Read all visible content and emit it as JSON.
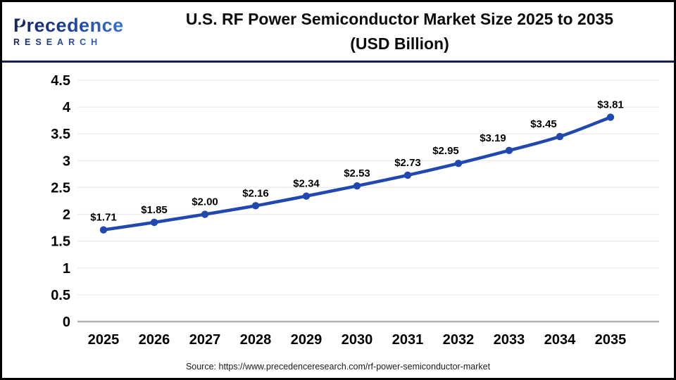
{
  "logo": {
    "name": "Precedence",
    "subtitle": "RESEARCH"
  },
  "header": {
    "title_line1": "U.S. RF Power Semiconductor Market Size 2025 to 2035",
    "title_line2": "(USD Billion)"
  },
  "source": "Source: https://www.precedenceresearch.com/rf-power-semiconductor-market",
  "chart_data": {
    "type": "line",
    "title": "U.S. RF Power Semiconductor Market Size 2025 to 2035 (USD Billion)",
    "categories": [
      "2025",
      "2026",
      "2027",
      "2028",
      "2029",
      "2030",
      "2031",
      "2032",
      "2033",
      "2034",
      "2035"
    ],
    "series": [
      {
        "name": "U.S. RF Power Semiconductor Market Size (USD Billion)",
        "values": [
          1.71,
          1.85,
          2.0,
          2.16,
          2.34,
          2.53,
          2.73,
          2.95,
          3.19,
          3.45,
          3.81
        ],
        "point_labels": [
          "$1.71",
          "$1.85",
          "$2.00",
          "$2.16",
          "$2.34",
          "$2.53",
          "$2.73",
          "$2.95",
          "$3.19",
          "$3.45",
          "$3.81"
        ]
      }
    ],
    "xlabel": "",
    "ylabel": "",
    "ylim": [
      0,
      4.5
    ],
    "yticks": [
      0,
      0.5,
      1,
      1.5,
      2,
      2.5,
      3,
      3.5,
      4,
      4.5
    ],
    "ytick_labels": [
      "0",
      "0.5",
      "1",
      "1.5",
      "2",
      "2.5",
      "3",
      "3.5",
      "4",
      "4.5"
    ],
    "grid": true,
    "legend_position": "none",
    "line_color": "#2148B1",
    "marker_color": "#2148B1",
    "data_label_color": "#000000",
    "tick_label_color": "#000000"
  },
  "colors": {
    "page_border": "#000000",
    "header_divider": "#17204E",
    "grid_line": "#ECECEC",
    "axis_line": "#B0B0B0",
    "accent_blue": "#2148B1",
    "logo_navy": "#16265C",
    "logo_blue": "#3A7BD5"
  }
}
